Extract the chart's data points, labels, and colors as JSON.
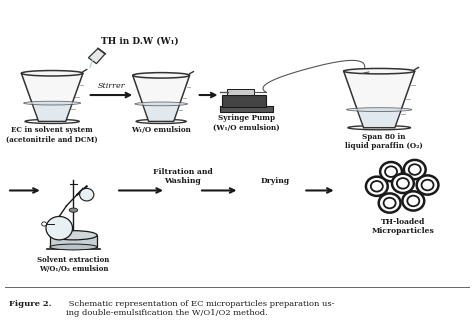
{
  "title_bold": "Figure 2.",
  "title_text": " Schematic representation of EC microparticles preparation us-\ning double-emulsification the W/O1/O2 method.",
  "bg_color": "#ffffff",
  "top_row": {
    "beaker1_label": "EC in solvent system\n(acetonitrile and DCM)",
    "arrow1_label": "Stirrer",
    "beaker2_label": "W₁/O emulsion",
    "syringe_label": "Syringe Pump\n(W₁/O emulsion)",
    "beaker3_label": "Span 80 in\nliquid paraffin (O₂)",
    "th_label": "TH in D.W (W₁)"
  },
  "bottom_row": {
    "evap_label": "Solvent extraction\nW/O₁/O₂ emulsion",
    "filter_label": "Filtration and\nWashing",
    "drying_label": "Drying",
    "particles_label": "TH-loaded\nMicroparticles"
  },
  "line_color": "#1a1a1a",
  "text_color": "#1a1a1a",
  "figure_width": 4.74,
  "figure_height": 3.33,
  "beaker_facecolor": "#f7f7f7",
  "beaker_liquid": "#d0dde8",
  "beaker_edge": "#333333",
  "beaker_rim": "#555555"
}
